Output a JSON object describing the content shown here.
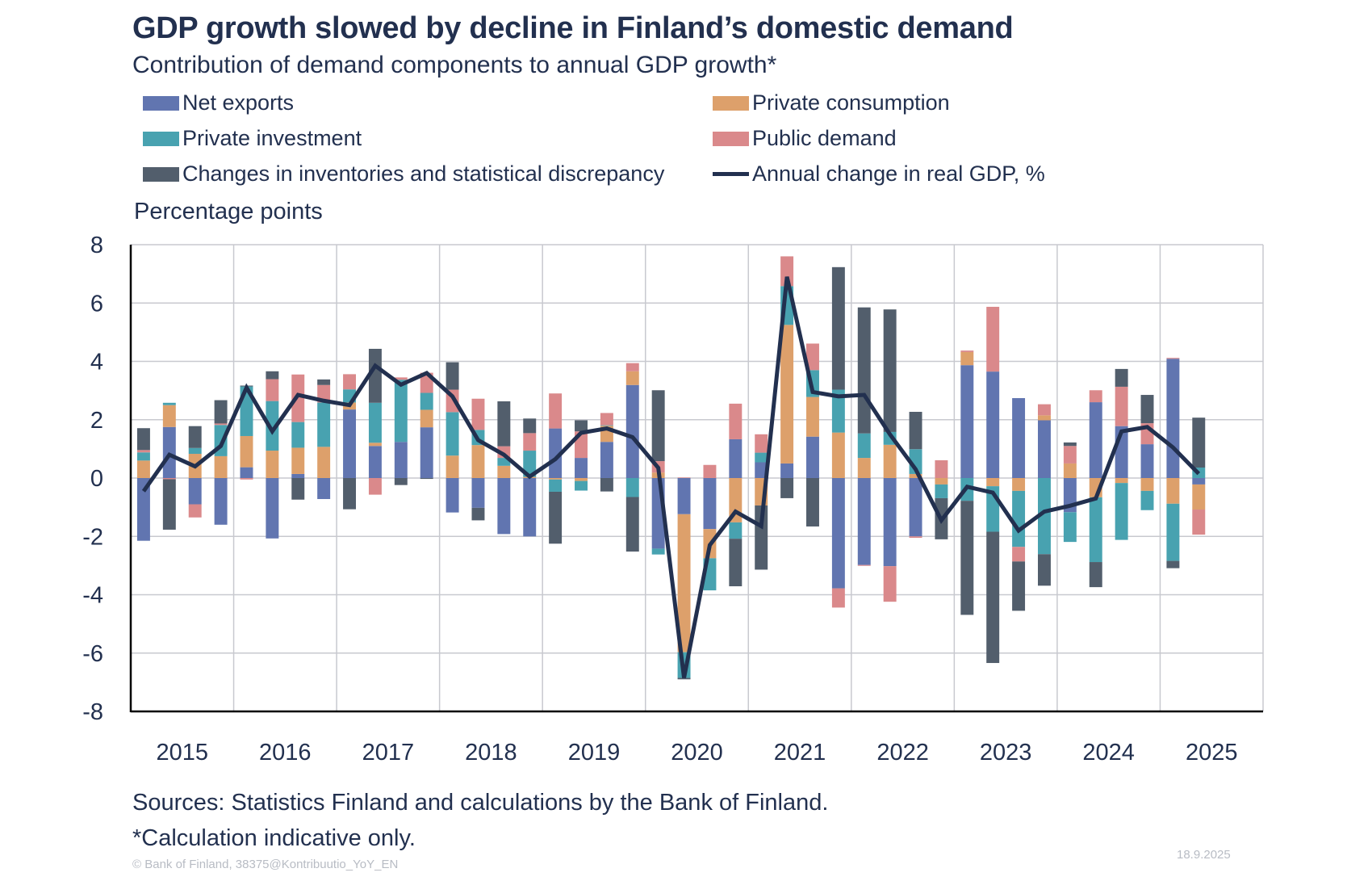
{
  "header": {
    "title": "GDP growth slowed by decline in Finland’s domestic demand",
    "subtitle": "Contribution of demand components to annual GDP growth*"
  },
  "legend": [
    {
      "key": "net_exports",
      "label": "Net exports",
      "color": "#6175B0",
      "kind": "bar"
    },
    {
      "key": "private_consumption",
      "label": "Private consumption",
      "color": "#DDA06B",
      "kind": "bar"
    },
    {
      "key": "private_investment",
      "label": "Private investment",
      "color": "#48A2B0",
      "kind": "bar"
    },
    {
      "key": "public_demand",
      "label": "Public demand",
      "color": "#DA898B",
      "kind": "bar"
    },
    {
      "key": "inventories",
      "label": "Changes in inventories and statistical discrepancy",
      "color": "#525E6C",
      "kind": "bar"
    },
    {
      "key": "gdp",
      "label": "Annual change in real GDP, %",
      "color": "#22304F",
      "kind": "line"
    }
  ],
  "footer": {
    "source": "Sources: Statistics Finland and calculations by the Bank of Finland.",
    "note": "*Calculation indicative only.",
    "copyright": "© Bank of Finland, 38375@Kontribuutio_YoY_EN",
    "date": "18.9.2025"
  },
  "chart_data": {
    "type": "bar",
    "stacked": true,
    "title": "GDP growth slowed by decline in Finland’s domestic demand",
    "subtitle": "Contribution of demand components to annual GDP growth*",
    "ylabel": "Percentage points",
    "xlabel": "",
    "ylim": [
      -8,
      8
    ],
    "yticks": [
      8,
      6,
      4,
      2,
      0,
      -2,
      -4,
      -6,
      -8
    ],
    "xtick_labels": [
      "2015",
      "2016",
      "2017",
      "2018",
      "2019",
      "2020",
      "2021",
      "2022",
      "2023",
      "2024",
      "2025"
    ],
    "grid": true,
    "legend_position": "top",
    "categories": [
      "2015Q1",
      "2015Q2",
      "2015Q3",
      "2015Q4",
      "2016Q1",
      "2016Q2",
      "2016Q3",
      "2016Q4",
      "2017Q1",
      "2017Q2",
      "2017Q3",
      "2017Q4",
      "2018Q1",
      "2018Q2",
      "2018Q3",
      "2018Q4",
      "2019Q1",
      "2019Q2",
      "2019Q3",
      "2019Q4",
      "2020Q1",
      "2020Q2",
      "2020Q3",
      "2020Q4",
      "2021Q1",
      "2021Q2",
      "2021Q3",
      "2021Q4",
      "2022Q1",
      "2022Q2",
      "2022Q3",
      "2022Q4",
      "2023Q1",
      "2023Q2",
      "2023Q3",
      "2023Q4",
      "2024Q1",
      "2024Q2",
      "2024Q3",
      "2024Q4",
      "2025Q1",
      "2025Q2"
    ],
    "series": [
      {
        "name": "Net exports",
        "key": "net_exports",
        "type": "bar",
        "values": [
          -2.15,
          1.75,
          -0.9,
          -1.6,
          0.37,
          -2.07,
          0.14,
          -0.72,
          2.35,
          1.1,
          1.24,
          1.74,
          -1.18,
          -1.02,
          -1.92,
          -2.0,
          1.7,
          0.69,
          1.24,
          3.19,
          -2.42,
          -1.24,
          -1.75,
          1.33,
          0.54,
          0.5,
          1.42,
          -3.78,
          -2.98,
          -3.02,
          -2.0,
          0.0,
          3.87,
          3.65,
          2.74,
          1.98,
          -1.17,
          2.6,
          1.78,
          1.16,
          4.09,
          -0.22
        ]
      },
      {
        "name": "Private consumption",
        "key": "private_consumption",
        "type": "bar",
        "values": [
          0.6,
          0.75,
          0.83,
          0.75,
          1.07,
          0.94,
          0.9,
          1.07,
          0.24,
          0.11,
          0.0,
          0.6,
          0.77,
          1.13,
          0.42,
          0.04,
          -0.05,
          -0.1,
          0.55,
          0.47,
          0.19,
          -4.73,
          -1.0,
          -1.52,
          -0.94,
          4.75,
          1.36,
          1.56,
          0.69,
          1.14,
          0.14,
          -0.22,
          0.45,
          -0.28,
          -0.44,
          0.17,
          0.5,
          -0.66,
          -0.17,
          -0.44,
          -0.88,
          -0.86
        ]
      },
      {
        "name": "Private investment",
        "key": "private_investment",
        "type": "bar",
        "values": [
          0.28,
          0.08,
          0.2,
          1.07,
          1.7,
          1.7,
          0.88,
          1.52,
          0.45,
          1.37,
          2.13,
          0.58,
          1.49,
          0.52,
          0.27,
          0.9,
          -0.42,
          -0.33,
          0.02,
          -0.65,
          -0.2,
          -0.88,
          -1.1,
          -0.56,
          0.33,
          1.33,
          0.92,
          1.47,
          0.84,
          0.44,
          0.85,
          -0.47,
          -0.78,
          -1.56,
          -1.92,
          -2.61,
          -1.02,
          -2.22,
          -1.95,
          -0.66,
          -1.96,
          0.36
        ]
      },
      {
        "name": "Public demand",
        "key": "public_demand",
        "type": "bar",
        "values": [
          0.08,
          -0.04,
          -0.45,
          0.05,
          -0.05,
          0.75,
          1.63,
          0.6,
          0.52,
          -0.57,
          0.08,
          0.69,
          0.77,
          1.07,
          0.4,
          0.6,
          1.2,
          0.91,
          0.42,
          0.28,
          0.39,
          0.02,
          0.45,
          1.22,
          0.63,
          1.02,
          0.91,
          -0.66,
          -0.03,
          -1.22,
          -0.05,
          0.61,
          0.05,
          2.22,
          -0.5,
          0.38,
          0.6,
          0.41,
          1.35,
          0.72,
          0.03,
          -0.86
        ]
      },
      {
        "name": "Changes in inventories and statistical discrepancy",
        "key": "inventories",
        "type": "bar",
        "values": [
          0.75,
          -1.73,
          0.75,
          0.8,
          0.03,
          0.27,
          -0.74,
          0.19,
          -1.07,
          1.85,
          -0.24,
          -0.03,
          0.94,
          -0.43,
          1.54,
          0.5,
          -1.78,
          0.38,
          -0.46,
          -1.87,
          2.43,
          -0.05,
          0.0,
          -1.63,
          -2.2,
          -0.69,
          -1.66,
          4.2,
          4.32,
          4.2,
          1.28,
          -1.41,
          -3.91,
          -4.5,
          -1.69,
          -1.08,
          0.12,
          -0.86,
          0.61,
          0.97,
          -0.25,
          1.71
        ]
      },
      {
        "name": "Annual change in real GDP, %",
        "key": "gdp",
        "type": "line",
        "values": [
          -0.45,
          0.8,
          0.4,
          1.1,
          3.1,
          1.6,
          2.85,
          2.65,
          2.5,
          3.85,
          3.2,
          3.6,
          2.8,
          1.3,
          0.8,
          0.05,
          0.65,
          1.55,
          1.7,
          1.4,
          0.35,
          -6.85,
          -2.3,
          -1.15,
          -1.65,
          6.9,
          2.95,
          2.8,
          2.85,
          1.5,
          0.3,
          -1.45,
          -0.3,
          -0.5,
          -1.8,
          -1.15,
          -0.95,
          -0.7,
          1.6,
          1.75,
          1.05,
          0.15
        ]
      }
    ]
  }
}
